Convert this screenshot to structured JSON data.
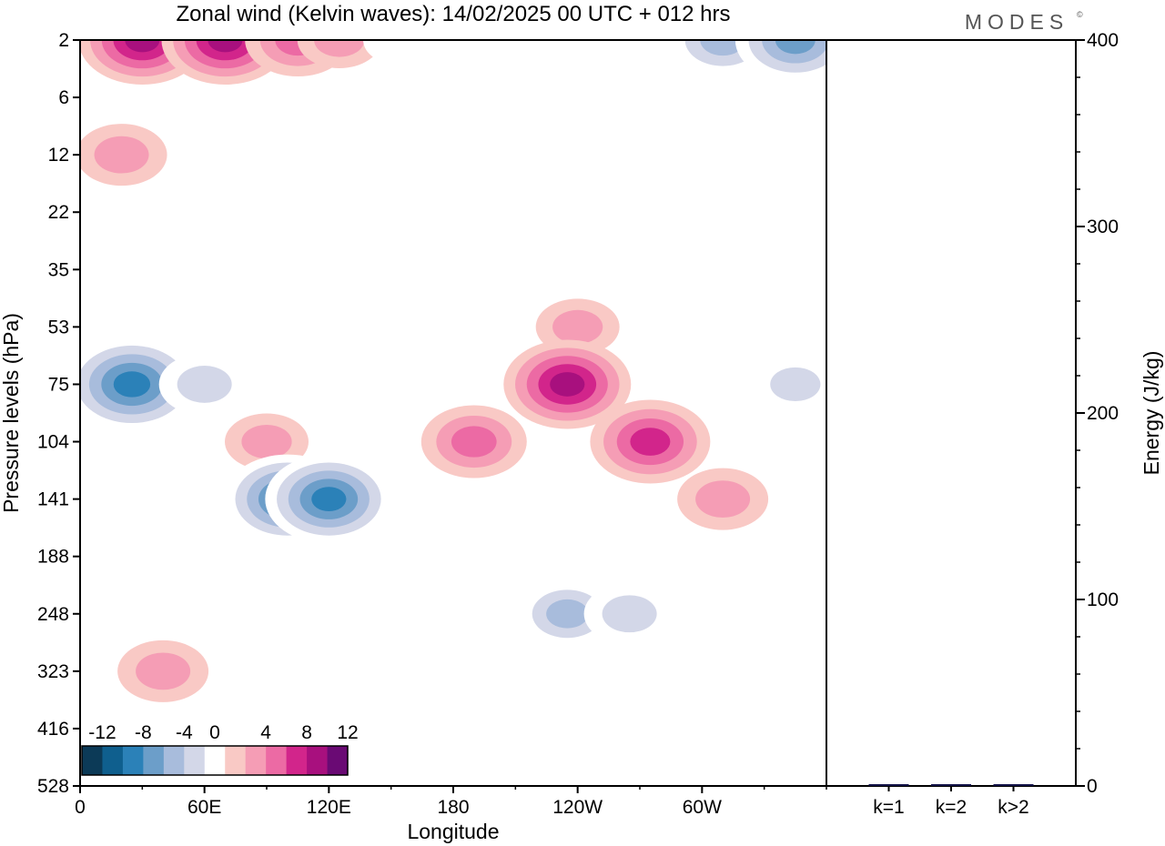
{
  "chart_data": {
    "type": "heatmap",
    "title": "Zonal wind (Kelvin waves):  14/02/2025  00 UTC  + 012 hrs",
    "logo": "MODES",
    "xlabel": "Longitude",
    "ylabel": "Pressure levels (hPa)",
    "x_ticks": [
      "0",
      "60E",
      "120E",
      "180",
      "120W",
      "60W"
    ],
    "x_tick_degrees": [
      0,
      60,
      120,
      180,
      240,
      300
    ],
    "xlim": [
      0,
      360
    ],
    "y_ticks": [
      "2",
      "6",
      "12",
      "22",
      "35",
      "53",
      "75",
      "104",
      "141",
      "188",
      "248",
      "323",
      "416",
      "528"
    ],
    "colorbar": {
      "labels": [
        "-12",
        "-8",
        "-4",
        "0",
        "4",
        "8",
        "12"
      ],
      "levels": [
        -14,
        -12,
        -10,
        -8,
        -6,
        -4,
        -2,
        2,
        4,
        6,
        8,
        10,
        12,
        14
      ],
      "colors": [
        "#0c3a57",
        "#0f5f8e",
        "#2b81b8",
        "#6c9ec9",
        "#a8bcdc",
        "#d3d7e8",
        "#ffffff",
        "#f9c9c5",
        "#f59db5",
        "#ec6aa4",
        "#d2258b",
        "#a8107e",
        "#6a0a74"
      ]
    },
    "regions": [
      {
        "lon": 30,
        "level": "2",
        "value": 9
      },
      {
        "lon": 70,
        "level": "2",
        "value": 9
      },
      {
        "lon": 105,
        "level": "2",
        "value": 6
      },
      {
        "lon": 125,
        "level": "2",
        "value": 3
      },
      {
        "lon": 155,
        "level": "2",
        "value": -2
      },
      {
        "lon": 310,
        "level": "2",
        "value": -6
      },
      {
        "lon": 345,
        "level": "2",
        "value": -8
      },
      {
        "lon": 20,
        "level": "12",
        "value": 4
      },
      {
        "lon": 240,
        "level": "53",
        "value": 3
      },
      {
        "lon": 25,
        "level": "75",
        "value": -10
      },
      {
        "lon": 60,
        "level": "75",
        "value": -4
      },
      {
        "lon": 90,
        "level": "104",
        "value": 3
      },
      {
        "lon": 235,
        "level": "75",
        "value": 9
      },
      {
        "lon": 190,
        "level": "104",
        "value": 6
      },
      {
        "lon": 100,
        "level": "141",
        "value": -9
      },
      {
        "lon": 120,
        "level": "141",
        "value": -9
      },
      {
        "lon": 275,
        "level": "104",
        "value": 8
      },
      {
        "lon": 310,
        "level": "141",
        "value": 4
      },
      {
        "lon": 235,
        "level": "248",
        "value": -5
      },
      {
        "lon": 265,
        "level": "248",
        "value": -4
      },
      {
        "lon": 40,
        "level": "323",
        "value": 4
      },
      {
        "lon": 345,
        "level": "75",
        "value": -3
      }
    ]
  },
  "energy_panel": {
    "ylabel": "Energy (J/kg)",
    "y_ticks": [
      "0",
      "100",
      "200",
      "300",
      "400"
    ],
    "ylim": [
      0,
      400
    ],
    "categories": [
      "k=1",
      "k=2",
      "k>2"
    ],
    "values": [
      0.5,
      0.3,
      0.8
    ],
    "bar_color": "#15154a"
  }
}
